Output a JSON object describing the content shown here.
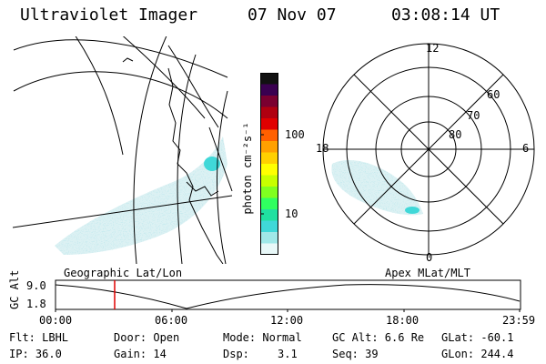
{
  "header": {
    "instrument": "Ultraviolet Imager",
    "date": "07 Nov 07",
    "time": "03:08:14 UT"
  },
  "geo_panel": {
    "label": "Geographic Lat/Lon"
  },
  "colorbar": {
    "unit_label": "photon cm⁻²s⁻¹",
    "tick_labels": [
      "100",
      "10"
    ],
    "colors": [
      "#111111",
      "#3a0050",
      "#7a0030",
      "#b00010",
      "#e00000",
      "#ff6000",
      "#ffa000",
      "#ffd000",
      "#ffff00",
      "#c8ff00",
      "#80ff20",
      "#30ff60",
      "#20e0a0",
      "#40d8d8",
      "#a0e8e8",
      "#e8f8f8"
    ]
  },
  "polar_panel": {
    "label": "Apex MLat/MLT",
    "mlt_labels": {
      "top": "12",
      "left": "18",
      "right": "6",
      "bottom": "0"
    },
    "lat_labels": [
      "60",
      "70",
      "80"
    ]
  },
  "altitude_plot": {
    "ylabel": "GC Alt",
    "y_ticks": [
      "9.0",
      "1.8"
    ],
    "x_ticks": [
      "00:00",
      "06:00",
      "12:00",
      "18:00",
      "23:59"
    ]
  },
  "info": {
    "filter": "Flt: LBHL",
    "door": "Door: Open",
    "mode": "Mode: Normal",
    "gc_alt": "GC Alt: 6.6 Re",
    "glat": "GLat: -60.1",
    "ip": "IP: 36.0",
    "gain": "Gain: 14",
    "dsp_label": "Dsp:",
    "dsp_value": "3.1",
    "seq": "Seq: 39",
    "glon": "GLon: 244.4"
  }
}
